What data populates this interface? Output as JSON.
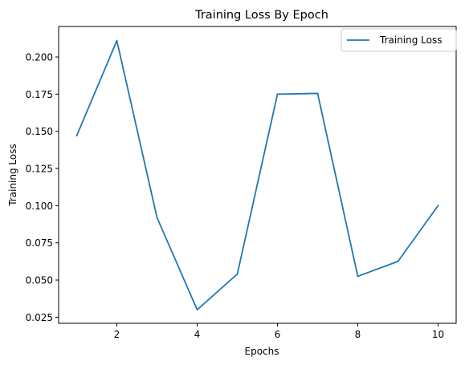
{
  "chart_data": {
    "type": "line",
    "title": "Training Loss By Epoch",
    "xlabel": "Epochs",
    "ylabel": "Training Loss",
    "xlim": [
      0.55,
      10.45
    ],
    "ylim": [
      0.0209,
      0.2205
    ],
    "xticks": [
      2,
      4,
      6,
      8,
      10
    ],
    "yticks": [
      0.025,
      0.05,
      0.075,
      0.1,
      0.125,
      0.15,
      0.175,
      0.2
    ],
    "ytick_labels": [
      "0.025",
      "0.050",
      "0.075",
      "0.100",
      "0.125",
      "0.150",
      "0.175",
      "0.200"
    ],
    "xtick_labels": [
      "2",
      "4",
      "6",
      "8",
      "10"
    ],
    "grid": false,
    "legend": {
      "placement": "top-right",
      "entries": [
        "Training Loss"
      ]
    },
    "series": [
      {
        "name": "Training Loss",
        "color": "#1f77b4",
        "x": [
          1,
          2,
          3,
          4,
          5,
          6,
          7,
          8,
          9,
          10
        ],
        "values": [
          0.147,
          0.211,
          0.092,
          0.03,
          0.054,
          0.175,
          0.1755,
          0.0525,
          0.0625,
          0.1
        ]
      }
    ]
  }
}
